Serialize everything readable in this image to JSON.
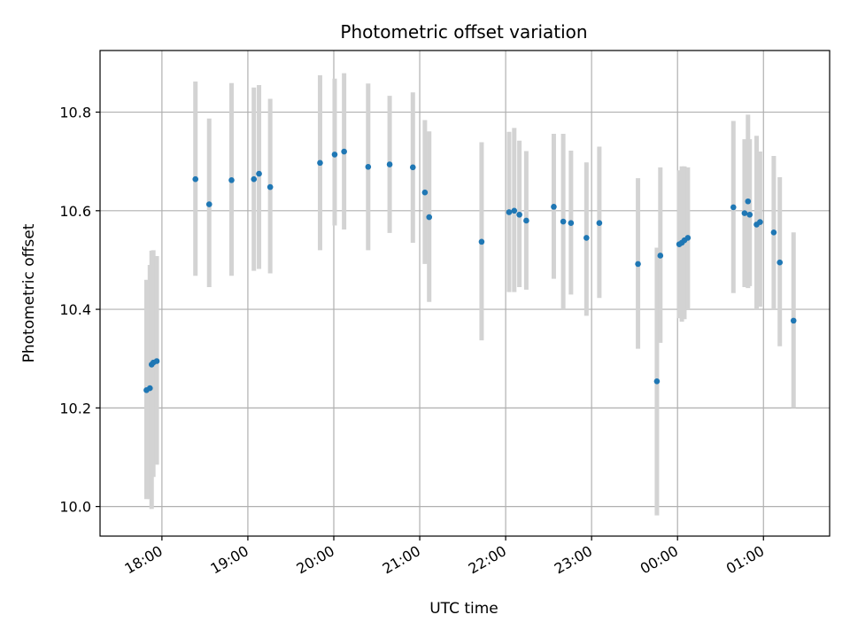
{
  "chart_data": {
    "type": "scatter",
    "title": "Photometric offset variation",
    "xlabel": "UTC time",
    "ylabel": "Photometric offset",
    "x_unit": "hours since 18:00 UTC",
    "xlim": [
      -0.72,
      7.77
    ],
    "ylim": [
      9.94,
      10.925
    ],
    "grid": true,
    "x_ticks": [
      {
        "value": 0,
        "label": "18:00"
      },
      {
        "value": 1,
        "label": "19:00"
      },
      {
        "value": 2,
        "label": "20:00"
      },
      {
        "value": 3,
        "label": "21:00"
      },
      {
        "value": 4,
        "label": "22:00"
      },
      {
        "value": 5,
        "label": "23:00"
      },
      {
        "value": 6,
        "label": "00:00"
      },
      {
        "value": 7,
        "label": "01:00"
      }
    ],
    "y_ticks": [
      {
        "value": 10.0,
        "label": "10.0"
      },
      {
        "value": 10.2,
        "label": "10.2"
      },
      {
        "value": 10.4,
        "label": "10.4"
      },
      {
        "value": 10.6,
        "label": "10.6"
      },
      {
        "value": 10.8,
        "label": "10.8"
      }
    ],
    "series": [
      {
        "name": "offset",
        "marker_color": "#1f77b4",
        "errorbar_color": "#d3d3d3",
        "x": [
          -0.18,
          -0.14,
          -0.12,
          -0.1,
          -0.06,
          0.39,
          0.55,
          0.81,
          1.07,
          1.13,
          1.26,
          1.84,
          2.01,
          2.12,
          2.4,
          2.65,
          2.92,
          3.06,
          3.11,
          3.72,
          4.04,
          4.1,
          4.16,
          4.24,
          4.56,
          4.67,
          4.76,
          4.94,
          5.09,
          5.54,
          5.76,
          5.8,
          6.02,
          6.05,
          6.08,
          6.12,
          6.65,
          6.78,
          6.82,
          6.84,
          6.92,
          6.96,
          7.12,
          7.19,
          7.35
        ],
        "y": [
          10.236,
          10.24,
          10.288,
          10.292,
          10.295,
          10.664,
          10.613,
          10.662,
          10.664,
          10.675,
          10.648,
          10.697,
          10.714,
          10.72,
          10.689,
          10.694,
          10.688,
          10.637,
          10.587,
          10.537,
          10.597,
          10.6,
          10.592,
          10.58,
          10.608,
          10.578,
          10.575,
          10.545,
          10.575,
          10.492,
          10.254,
          10.509,
          10.532,
          10.535,
          10.54,
          10.545,
          10.607,
          10.595,
          10.619,
          10.592,
          10.572,
          10.577,
          10.556,
          10.495,
          10.377
        ],
        "y_low": [
          10.015,
          10.015,
          9.995,
          10.06,
          10.085,
          10.468,
          10.445,
          10.468,
          10.478,
          10.482,
          10.473,
          10.52,
          10.57,
          10.562,
          10.52,
          10.555,
          10.535,
          10.492,
          10.415,
          10.337,
          10.435,
          10.435,
          10.445,
          10.44,
          10.462,
          10.4,
          10.43,
          10.387,
          10.423,
          10.32,
          9.982,
          10.332,
          10.382,
          10.375,
          10.38,
          10.4,
          10.433,
          10.445,
          10.443,
          10.447,
          10.4,
          10.405,
          10.4,
          10.325,
          10.2
        ],
        "y_high": [
          10.46,
          10.49,
          10.519,
          10.52,
          10.508,
          10.862,
          10.787,
          10.859,
          10.85,
          10.855,
          10.827,
          10.875,
          10.868,
          10.879,
          10.858,
          10.833,
          10.84,
          10.784,
          10.761,
          10.739,
          10.76,
          10.768,
          10.742,
          10.721,
          10.756,
          10.756,
          10.722,
          10.698,
          10.73,
          10.666,
          10.525,
          10.688,
          10.682,
          10.69,
          10.69,
          10.688,
          10.782,
          10.745,
          10.795,
          10.745,
          10.752,
          10.72,
          10.711,
          10.668,
          10.556
        ]
      }
    ]
  }
}
